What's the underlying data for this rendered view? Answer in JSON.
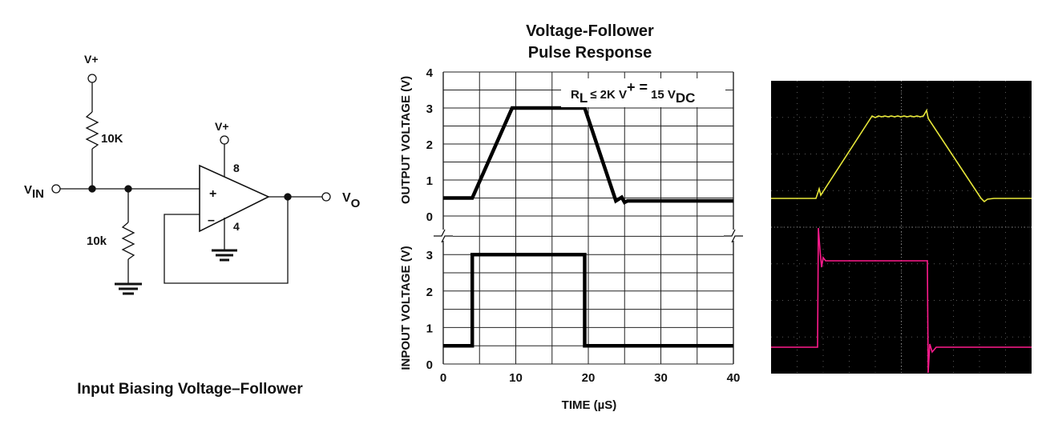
{
  "schematic": {
    "caption": "Input Biasing Voltage–Follower",
    "vplus_top": "V+",
    "vplus_opamp": "V+",
    "r_top": "10K",
    "r_bottom": "10k",
    "vin_main": "V",
    "vin_sub": "IN",
    "vout_main": "V",
    "vout_sub": "O",
    "pin_power": "8",
    "pin_ground": "4",
    "plus_sign": "+",
    "minus_sign": "–"
  },
  "chart_data": [
    {
      "type": "line",
      "title": "Voltage-Follower",
      "subtitle": "Pulse Response",
      "annotation": {
        "r": "R",
        "r_sub": "L",
        "cond": "≤ 2K V",
        "sup": "+ =",
        "volt": "15 V",
        "volt_sub": "DC"
      },
      "xlabel": "TIME (µS)",
      "xlim": [
        0,
        40
      ],
      "xticks": [
        "0",
        "10",
        "20",
        "30",
        "40"
      ],
      "grid": true,
      "panels": [
        {
          "name": "output",
          "ylabel": "OUTPUT VOLTAGE (V)",
          "ylim": [
            0,
            4
          ],
          "yticks": [
            "0",
            "1",
            "2",
            "3",
            "4"
          ],
          "x": [
            0,
            4,
            9.5,
            19.5,
            23.8,
            24.6,
            25.0,
            25.4,
            40
          ],
          "y": [
            0.5,
            0.5,
            3,
            3,
            0.42,
            0.52,
            0.38,
            0.42,
            0.42
          ]
        },
        {
          "name": "input",
          "ylabel": "INPOUT VOLTAGE (V)",
          "ylim": [
            0,
            4
          ],
          "yticks": [
            "0",
            "1",
            "2",
            "3"
          ],
          "x": [
            0,
            4,
            4,
            19.5,
            19.5,
            40
          ],
          "y": [
            0.5,
            0.5,
            3,
            3,
            0.5,
            0.5
          ]
        }
      ]
    }
  ],
  "scope": {
    "background": "#000000",
    "grid_color": "#5a5a5a",
    "trace_output_color": "#e8e83a",
    "trace_input_color": "#ff1a8c"
  }
}
